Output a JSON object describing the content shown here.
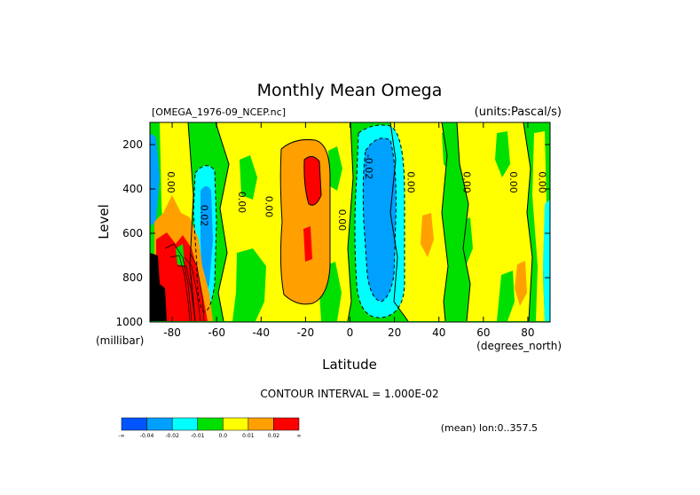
{
  "chart_data": {
    "type": "heatmap",
    "title": "Monthly Mean Omega",
    "subtitle_left": "[OMEGA_1976-09_NCEP.nc]",
    "subtitle_right": "(units:Pascal/s)",
    "xlabel": "Latitude",
    "ylabel": "Level",
    "x_units": "(degrees_north)",
    "y_units": "(millibar)",
    "xlim": [
      -90,
      90
    ],
    "ylim": [
      1000,
      100
    ],
    "x_ticks": [
      -80,
      -60,
      -40,
      -20,
      0,
      20,
      40,
      60,
      80
    ],
    "x_tick_labels": [
      "-80",
      "-60",
      "-40",
      "-20",
      "0",
      "20",
      "40",
      "60",
      "80"
    ],
    "y_ticks": [
      200,
      400,
      600,
      800,
      1000
    ],
    "y_tick_labels": [
      "200",
      "400",
      "600",
      "800",
      "1000"
    ],
    "contour_interval_label": "CONTOUR INTERVAL = 1.000E-02",
    "mean_label": "(mean) lon:0..357.5",
    "contour_labels": [
      {
        "text": "0.00",
        "lat": -82,
        "level": 370
      },
      {
        "text": "0.02",
        "lat": -67,
        "level": 520
      },
      {
        "text": "0.00",
        "lat": -50,
        "level": 460
      },
      {
        "text": "0.00",
        "lat": -38,
        "level": 480
      },
      {
        "text": "0.00",
        "lat": -5,
        "level": 540
      },
      {
        "text": "-0.02",
        "lat": 7,
        "level": 300
      },
      {
        "text": "0.00",
        "lat": 26,
        "level": 370
      },
      {
        "text": "0.00",
        "lat": 51,
        "level": 370
      },
      {
        "text": "0.00",
        "lat": 72,
        "level": 370
      },
      {
        "text": "0.00",
        "lat": 85,
        "level": 370
      }
    ],
    "legend": {
      "type": "colorbar",
      "colors": [
        "#0055ff",
        "#00a0ff",
        "#00ffff",
        "#00e000",
        "#ffff00",
        "#ffa000",
        "#ff0000"
      ],
      "tick_labels": [
        "-∞",
        "-0.04",
        "-0.02",
        "-0.01",
        "0.0",
        "0.01",
        "0.02",
        "∞"
      ]
    },
    "regions": [
      {
        "name": "positive-lobe-20s",
        "level": ">0.01",
        "lat_range": [
          -32,
          -10
        ],
        "level_range": [
          850,
          190
        ]
      },
      {
        "name": "core-20s",
        "level": ">0.02",
        "lat_range": [
          -25,
          -17
        ],
        "level_range": [
          470,
          270
        ]
      },
      {
        "name": "negative-core-10n",
        "level": "<-0.02",
        "lat_range": [
          5,
          22
        ],
        "level_range": [
          920,
          120
        ]
      },
      {
        "name": "negative-core-65s",
        "level": "<-0.01",
        "lat_range": [
          -72,
          -62
        ],
        "level_range": [
          980,
          200
        ]
      },
      {
        "name": "positive-antarctic",
        "level": ">0.02",
        "lat_range": [
          -90,
          -62
        ],
        "level_range": [
          1000,
          600
        ]
      }
    ]
  },
  "colors": {
    "red": "#ff0000",
    "orange": "#ffa000",
    "yellow": "#ffff00",
    "green": "#00e000",
    "cyan": "#00ffff",
    "lightblue": "#00a0ff",
    "blue": "#0055ff",
    "topography": "#000000"
  }
}
